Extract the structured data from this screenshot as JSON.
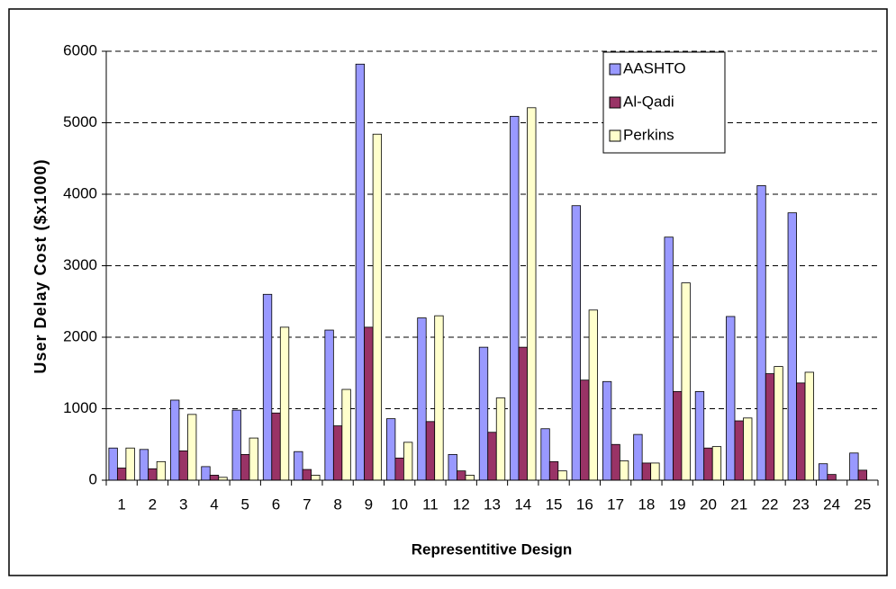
{
  "chart_data": {
    "type": "bar",
    "x_label": "Representitive Design",
    "y_label": "User Delay Cost ($x1000)",
    "categories": [
      "1",
      "2",
      "3",
      "4",
      "5",
      "6",
      "7",
      "8",
      "9",
      "10",
      "11",
      "12",
      "13",
      "14",
      "15",
      "16",
      "17",
      "18",
      "19",
      "20",
      "21",
      "22",
      "23",
      "24",
      "25"
    ],
    "series": [
      {
        "name": "AASHTO",
        "color": "#9999ff",
        "values": [
          450,
          430,
          1120,
          190,
          980,
          2600,
          400,
          2100,
          5820,
          860,
          2270,
          360,
          1860,
          5090,
          720,
          3840,
          1380,
          640,
          3400,
          1240,
          2290,
          4120,
          3740,
          230,
          380
        ]
      },
      {
        "name": "Al-Qadi",
        "color": "#993366",
        "values": [
          170,
          160,
          410,
          70,
          360,
          940,
          150,
          760,
          2140,
          310,
          820,
          130,
          670,
          1860,
          260,
          1400,
          500,
          240,
          1240,
          450,
          830,
          1490,
          1360,
          80,
          140
        ]
      },
      {
        "name": "Perkins",
        "color": "#ffffcc",
        "values": [
          450,
          260,
          920,
          40,
          590,
          2140,
          70,
          1270,
          4840,
          530,
          2300,
          70,
          1150,
          5210,
          130,
          2380,
          270,
          240,
          2760,
          470,
          870,
          1590,
          1510,
          null,
          null
        ]
      }
    ],
    "ylim": [
      0,
      6000
    ],
    "yticks": [
      0,
      1000,
      2000,
      3000,
      4000,
      5000,
      6000
    ],
    "grid": true,
    "legend": "upper-right"
  }
}
